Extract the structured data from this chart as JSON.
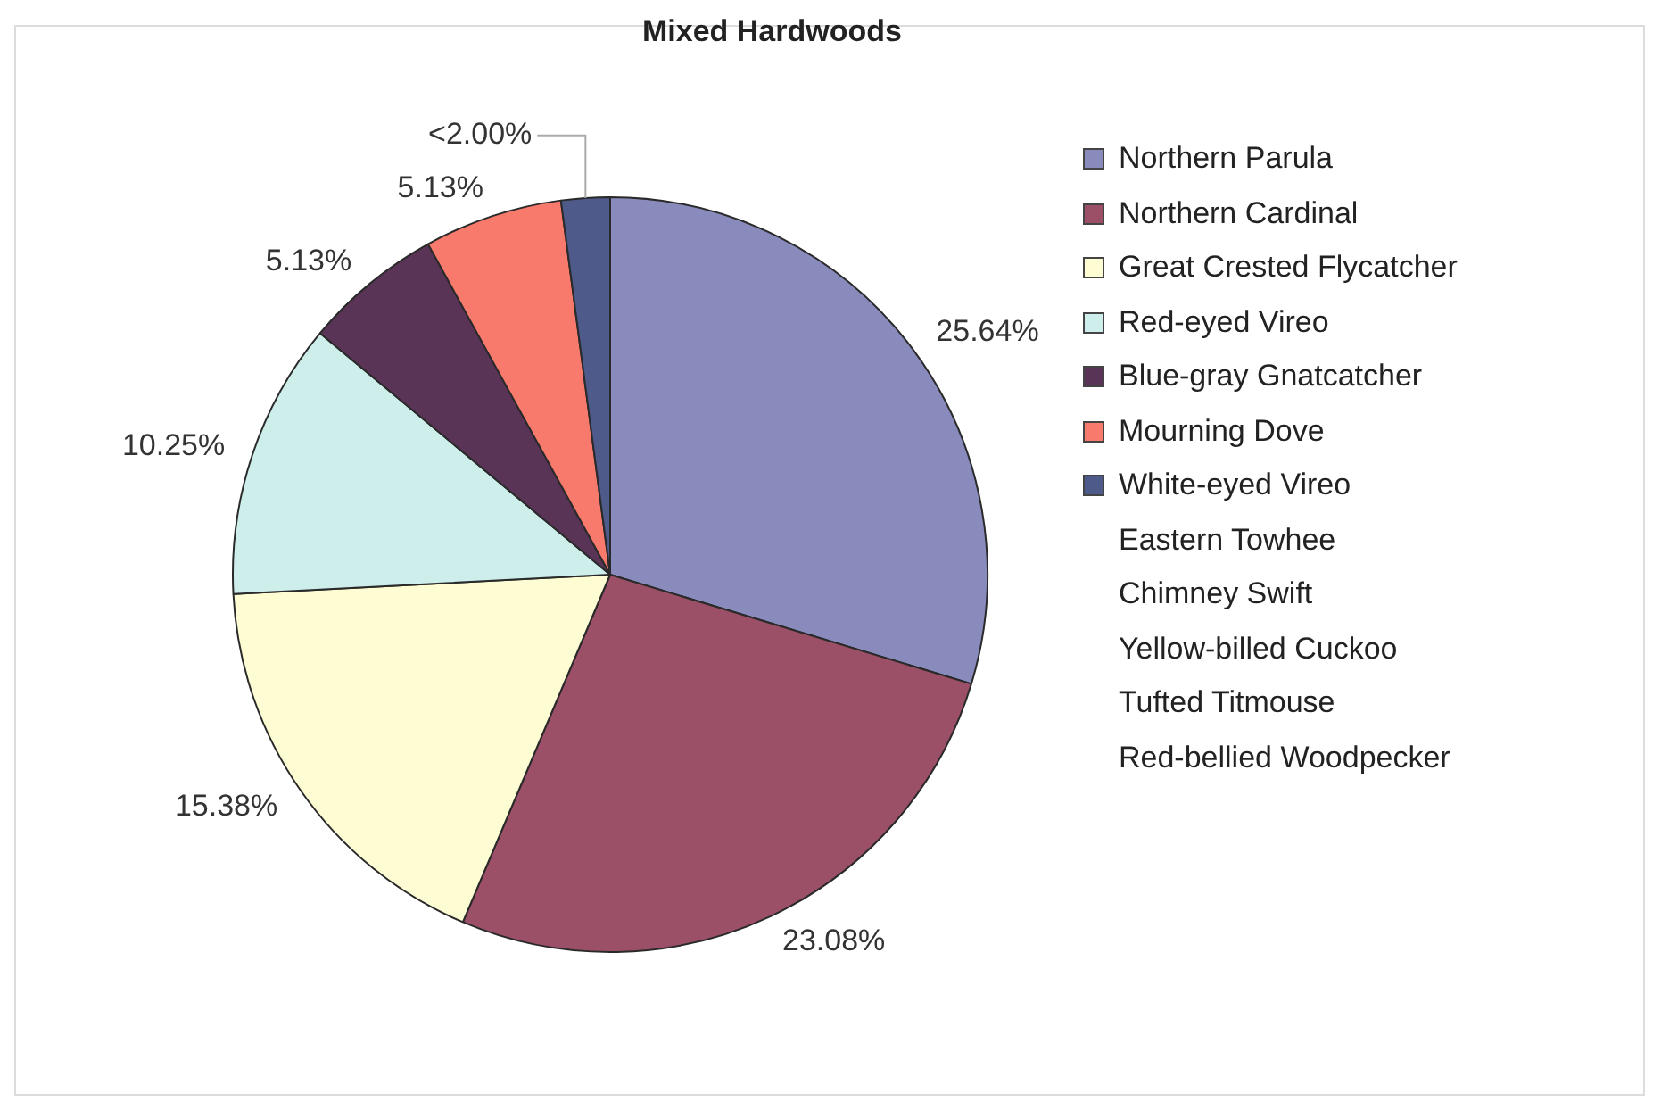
{
  "chart_data": {
    "type": "pie",
    "title": "Mixed Hardwoods",
    "categories": [
      "Northern Parula",
      "Northern Cardinal",
      "Great Crested Flycatcher",
      "Red-eyed Vireo",
      "Blue-gray Gnatcatcher",
      "Mourning Dove",
      "White-eyed Vireo",
      "Eastern Towhee",
      "Chimney Swift",
      "Yellow-billed Cuckoo",
      "Tufted Titmouse",
      "Red-bellied Woodpecker"
    ],
    "values": [
      25.64,
      23.08,
      15.38,
      10.25,
      5.13,
      5.13,
      1.8,
      0,
      0,
      0,
      0,
      0
    ],
    "value_labels": [
      "25.64%",
      "23.08%",
      "15.38%",
      "10.25%",
      "5.13%",
      "5.13%",
      "<2.00%",
      null,
      null,
      null,
      null,
      null
    ],
    "colors": [
      "#8a8bbd",
      "#9b5068",
      "#fdfcd2",
      "#cdeeea",
      "#5a3457",
      "#f77a6c",
      "#4e5a8a",
      null,
      null,
      null,
      null,
      null
    ],
    "legend": "right"
  }
}
